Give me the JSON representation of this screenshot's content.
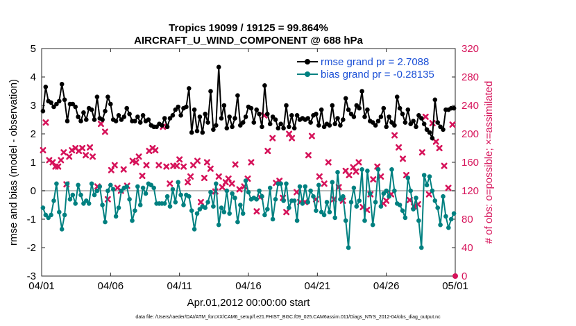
{
  "chart_data": {
    "type": "line",
    "title": "Tropics 19099 / 19125 = 99.864%",
    "subtitle": "AIRCRAFT_U_WIND_COMPONENT @ 688 hPa",
    "xlabel": "Apr.01,2012 00:00:00 start",
    "ylabel": "rmse and bias (model - observation)",
    "ylabel_right": "# of obs: o=possible; ×=assimilated",
    "ylim": [
      -3,
      5
    ],
    "ylim_right": [
      0,
      320
    ],
    "xlim": [
      0,
      30
    ],
    "yticks": [
      "-3",
      "-2",
      "-1",
      "0",
      "1",
      "2",
      "3",
      "4",
      "5"
    ],
    "yticks_right": [
      "0",
      "40",
      "80",
      "120",
      "160",
      "200",
      "240",
      "280",
      "320"
    ],
    "xticks": [
      "04/01",
      "04/06",
      "04/11",
      "04/16",
      "04/21",
      "04/26",
      "05/01"
    ],
    "footnote": "data file: /Users/raeder/DAI/ATM_forcXX/CAM6_setup/f.e21.FHIST_BGC.f09_025.CAM6assim.011/Diags_NTrS_2012-04/obs_diag_output.nc",
    "legend": [
      {
        "label": "rmse grand pr = 2.7088",
        "color": "#000000"
      },
      {
        "label": "bias grand pr = -0.28135",
        "color": "#008080"
      }
    ],
    "colors": {
      "rmse": "#000000",
      "bias": "#008080",
      "obs": "#d6135a",
      "text_accent": "#1a4fd6",
      "zero_line": "#bbbbbb"
    },
    "series": [
      {
        "name": "rmse",
        "values": [
          2.8,
          3.65,
          3.15,
          3.1,
          2.95,
          3.05,
          3.15,
          3.75,
          3.2,
          2.45,
          3.05,
          3.05,
          2.95,
          2.6,
          2.45,
          2.75,
          2.5,
          2.9,
          2.85,
          2.5,
          3.3,
          2.55,
          2.5,
          2.8,
          3.3,
          3.05,
          2.5,
          2.45,
          2.65,
          2.5,
          2.6,
          2.9,
          2.7,
          2.45,
          2.45,
          2.6,
          2.4,
          2.65,
          2.45,
          2.5,
          2.3,
          2.25,
          2.25,
          2.35,
          2.3,
          2.55,
          2.25,
          2.55,
          2.65,
          2.85,
          2.95,
          2.65,
          2.9,
          2.95,
          3.6,
          2.05,
          2.85,
          2.1,
          2.6,
          2.05,
          2.7,
          2.4,
          3.5,
          2.15,
          2.3,
          4.35,
          2.55,
          3.0,
          2.2,
          2.6,
          2.25,
          2.55,
          3.35,
          2.3,
          2.4,
          2.6,
          2.95,
          2.9,
          2.4,
          2.85,
          2.7,
          2.25,
          3.7,
          2.7,
          2.35,
          2.6,
          2.5,
          2.2,
          2.35,
          2.2,
          3.0,
          2.25,
          2.65,
          2.2,
          2.65,
          2.5,
          2.55,
          2.5,
          2.55,
          2.4,
          2.65,
          2.7,
          2.3,
          2.85,
          2.25,
          2.35,
          2.3,
          3.0,
          2.35,
          2.55,
          2.3,
          2.5,
          3.25,
          2.85,
          2.7,
          2.6,
          3.0,
          2.9,
          3.5,
          2.6,
          2.85,
          2.45,
          2.4,
          2.3,
          2.45,
          2.6,
          2.9,
          2.25,
          2.6,
          2.4,
          2.3,
          3.3,
          2.9,
          2.7,
          2.4,
          2.85,
          2.35,
          2.45,
          2.25,
          2.65,
          2.55,
          2.35,
          2.15,
          2.05,
          1.85,
          3.2,
          2.4,
          2.25,
          2.15,
          2.85,
          2.85,
          2.9,
          2.9
        ]
      },
      {
        "name": "bias",
        "values": [
          -0.6,
          -0.85,
          -0.95,
          -0.85,
          -0.35,
          0.25,
          -0.75,
          -1.35,
          -0.85,
          0.25,
          -0.3,
          -0.15,
          -0.45,
          0.2,
          -0.15,
          -0.45,
          -0.35,
          -0.45,
          0.25,
          -0.15,
          0.0,
          0.15,
          -0.5,
          -1.1,
          0.0,
          0.2,
          0.05,
          -0.9,
          -0.6,
          0.0,
          0.1,
          0.15,
          -0.3,
          -1.05,
          -0.7,
          0.15,
          -0.5,
          0.1,
          -0.1,
          0.25,
          0.2,
          0.1,
          -0.45,
          -0.45,
          -0.45,
          -0.45,
          -0.2,
          -0.55,
          0.05,
          -0.4,
          0.3,
          -0.15,
          -0.5,
          -0.15,
          -0.2,
          -0.7,
          -1.35,
          -0.8,
          -0.65,
          -0.55,
          -0.6,
          -0.4,
          -0.05,
          -0.55,
          0.25,
          -1.2,
          -0.6,
          -0.75,
          0.0,
          -0.8,
          -0.1,
          -0.25,
          -1.1,
          -0.5,
          -0.8,
          0.35,
          -0.05,
          -0.3,
          -0.25,
          -0.3,
          0.0,
          -0.2,
          -0.85,
          -0.65,
          0.1,
          -1.0,
          -0.3,
          0.25,
          0.25,
          -0.35,
          0.25,
          -0.6,
          -0.35,
          -0.35,
          -1.05,
          0.15,
          -0.45,
          0.15,
          -0.4,
          0.0,
          -0.2,
          -0.7,
          0.2,
          -0.75,
          -0.85,
          -0.4,
          -0.75,
          0.3,
          -0.95,
          0.65,
          -0.3,
          -0.2,
          -1.05,
          -2.0,
          -0.4,
          0.1,
          -0.55,
          -0.35,
          0.75,
          -1.05,
          0.7,
          -0.1,
          -1.2,
          -0.4,
          0.75,
          -0.55,
          -0.1,
          0.0,
          -0.2,
          0.75,
          0.0,
          -0.45,
          -0.5,
          -0.7,
          -0.95,
          0.45,
          0.0,
          -0.65,
          -0.25,
          -1.05,
          -2.0,
          0.55,
          0.2,
          0.5,
          0.0,
          -0.35,
          -0.6,
          -1.2,
          -0.2,
          -0.9,
          -1.3,
          -1.0,
          -0.8
        ]
      },
      {
        "name": "obs_assimilated",
        "points": [
          [
            0.1,
            177
          ],
          [
            0.3,
            216
          ],
          [
            0.55,
            163
          ],
          [
            0.8,
            160
          ],
          [
            1.0,
            154
          ],
          [
            1.2,
            154
          ],
          [
            1.4,
            163
          ],
          [
            1.6,
            174
          ],
          [
            1.8,
            129
          ],
          [
            2.0,
            168
          ],
          [
            2.2,
            177
          ],
          [
            2.45,
            180
          ],
          [
            2.7,
            176
          ],
          [
            2.95,
            180
          ],
          [
            3.2,
            170
          ],
          [
            3.5,
            181
          ],
          [
            3.7,
            168
          ],
          [
            4.05,
            126
          ],
          [
            4.3,
            214
          ],
          [
            4.6,
            203
          ],
          [
            4.8,
            108
          ],
          [
            5.05,
            149
          ],
          [
            5.3,
            156
          ],
          [
            5.5,
            124
          ],
          [
            5.75,
            120
          ],
          [
            5.95,
            150
          ],
          [
            6.2,
            127
          ],
          [
            6.6,
            162
          ],
          [
            6.85,
            160
          ],
          [
            7.05,
            168
          ],
          [
            7.3,
            141
          ],
          [
            7.6,
            156
          ],
          [
            7.8,
            176
          ],
          [
            8.05,
            180
          ],
          [
            8.25,
            177
          ],
          [
            8.5,
            156
          ],
          [
            8.8,
            210
          ],
          [
            9.05,
            154
          ],
          [
            9.3,
            130
          ],
          [
            9.55,
            155
          ],
          [
            9.8,
            155
          ],
          [
            10.0,
            164
          ],
          [
            10.3,
            154
          ],
          [
            10.6,
            132
          ],
          [
            10.8,
            140
          ],
          [
            11.0,
            156
          ],
          [
            11.3,
            162
          ],
          [
            11.55,
            104
          ],
          [
            11.8,
            138
          ],
          [
            12.0,
            160
          ],
          [
            12.25,
            151
          ],
          [
            12.6,
            119
          ],
          [
            12.85,
            140
          ],
          [
            13.1,
            125
          ],
          [
            13.35,
            132
          ],
          [
            13.55,
            137
          ],
          [
            13.8,
            130
          ],
          [
            14.05,
            157
          ],
          [
            14.35,
            122
          ],
          [
            14.7,
            126
          ],
          [
            14.95,
            137
          ],
          [
            15.2,
            160
          ],
          [
            15.6,
            91
          ],
          [
            15.85,
            111
          ],
          [
            16.15,
            226
          ],
          [
            16.4,
            176
          ],
          [
            16.75,
            194
          ],
          [
            17.0,
            131
          ],
          [
            17.25,
            134
          ],
          [
            17.5,
            110
          ],
          [
            17.75,
            90
          ],
          [
            17.95,
            200
          ],
          [
            18.15,
            194
          ],
          [
            18.5,
            118
          ],
          [
            18.75,
            104
          ],
          [
            19.1,
            104
          ],
          [
            19.35,
            170
          ],
          [
            19.6,
            197
          ],
          [
            19.9,
            108
          ],
          [
            20.15,
            140
          ],
          [
            20.5,
            130
          ],
          [
            20.8,
            160
          ],
          [
            21.2,
            108
          ],
          [
            21.55,
            125
          ],
          [
            21.85,
            106
          ],
          [
            22.05,
            148
          ],
          [
            22.3,
            142
          ],
          [
            22.6,
            153
          ],
          [
            22.8,
            147
          ],
          [
            23.0,
            160
          ],
          [
            23.3,
            97
          ],
          [
            23.6,
            93
          ],
          [
            23.85,
            115
          ],
          [
            24.05,
            136
          ],
          [
            24.35,
            154
          ],
          [
            24.6,
            140
          ],
          [
            24.8,
            102
          ],
          [
            25.0,
            106
          ],
          [
            25.35,
            115
          ],
          [
            25.6,
            198
          ],
          [
            25.9,
            181
          ],
          [
            26.2,
            165
          ],
          [
            26.45,
            142
          ],
          [
            26.7,
            107
          ],
          [
            27.0,
            98
          ],
          [
            27.3,
            101
          ],
          [
            27.6,
            174
          ],
          [
            27.85,
            224
          ],
          [
            28.1,
            115
          ],
          [
            28.35,
            215
          ],
          [
            28.6,
            189
          ],
          [
            28.85,
            180
          ],
          [
            29.2,
            155
          ],
          [
            29.5,
            124
          ],
          [
            29.8,
            213
          ]
        ]
      }
    ]
  }
}
